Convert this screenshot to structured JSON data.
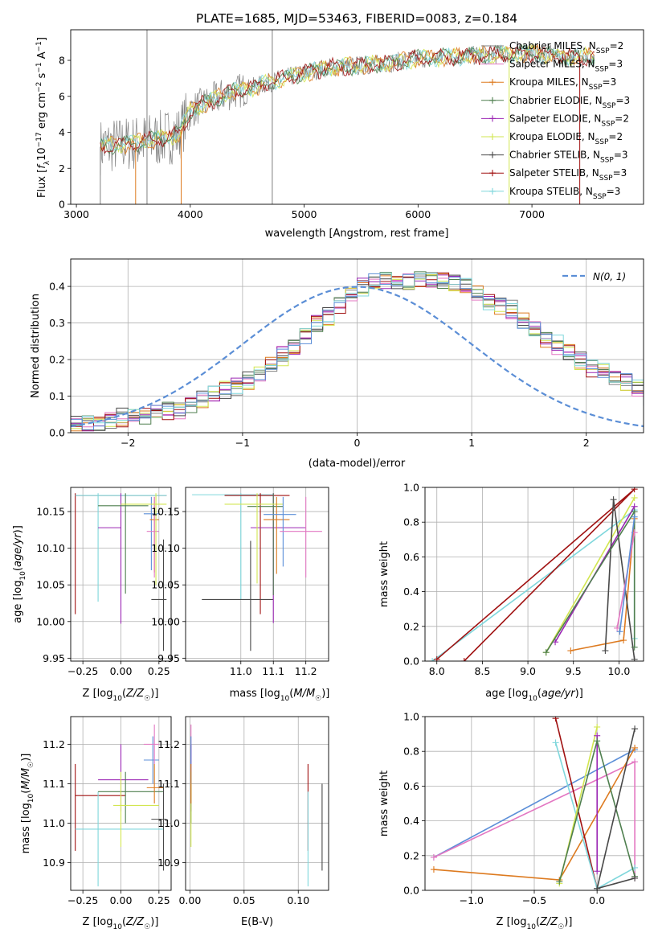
{
  "colors": {
    "Chabrier MILES": "#808080",
    "Salpeter MILES": "#e377c2",
    "Kroupa MILES": "#dd7a1f",
    "Chabrier ELODIE": "#4f7f4f",
    "Salpeter ELODIE": "#9b27b4",
    "Kroupa ELODIE": "#d2e650",
    "Chabrier STELIB": "#484848",
    "Salpeter STELIB": "#a01111",
    "Kroupa STELIB": "#7fd7dc",
    "extra blue": "#5c8fd8"
  },
  "chart_data": [
    {
      "id": "spectrum",
      "type": "line",
      "title": "PLATE=1685, MJD=53463, FIBERID=0083, z=0.184",
      "xlabel": "wavelength [Angstrom, rest frame]",
      "ylabel": "Flux [f_λ 10^-17 erg cm^-2 s^-1 A^-1]",
      "xlim": [
        2950,
        7980
      ],
      "ylim": [
        0,
        9.7
      ],
      "xticks": [
        3000,
        4000,
        5000,
        6000,
        7000
      ],
      "yticks": [
        0,
        2,
        4,
        6,
        8
      ],
      "legend_position": "upper right",
      "legend": [
        {
          "name": "Chabrier MILES",
          "nssp": "2",
          "color": "#808080",
          "marker": "none"
        },
        {
          "name": "Salpeter MILES",
          "nssp": "3",
          "color": "#e377c2",
          "marker": "none"
        },
        {
          "name": "Kroupa MILES",
          "nssp": "3",
          "color": "#dd7a1f",
          "marker": "+"
        },
        {
          "name": "Chabrier ELODIE",
          "nssp": "3",
          "color": "#4f7f4f",
          "marker": "+"
        },
        {
          "name": "Salpeter ELODIE",
          "nssp": "2",
          "color": "#9b27b4",
          "marker": "+"
        },
        {
          "name": "Kroupa ELODIE",
          "nssp": "2",
          "color": "#d2e650",
          "marker": "+"
        },
        {
          "name": "Chabrier STELIB",
          "nssp": "3",
          "color": "#484848",
          "marker": "+"
        },
        {
          "name": "Salpeter STELIB",
          "nssp": "3",
          "color": "#a01111",
          "marker": "+"
        },
        {
          "name": "Kroupa STELIB",
          "nssp": "3",
          "color": "#7fd7dc",
          "marker": "+"
        }
      ],
      "continuum_points": [
        [
          3210,
          3.2
        ],
        [
          3500,
          3.4
        ],
        [
          3700,
          3.6
        ],
        [
          3900,
          3.9
        ],
        [
          4000,
          5.2
        ],
        [
          4300,
          6.1
        ],
        [
          4600,
          6.6
        ],
        [
          5000,
          7.3
        ],
        [
          5200,
          7.6
        ],
        [
          5500,
          7.7
        ],
        [
          5800,
          7.9
        ],
        [
          6000,
          8.1
        ],
        [
          6300,
          8.2
        ],
        [
          6600,
          8.3
        ],
        [
          7000,
          8.4
        ],
        [
          7300,
          8.2
        ],
        [
          7550,
          8.2
        ]
      ]
    },
    {
      "id": "residuals",
      "type": "step",
      "xlabel": "(data-model)/error",
      "ylabel": "Normed distribution",
      "xlim": [
        -2.5,
        2.5
      ],
      "ylim": [
        0,
        0.475
      ],
      "xticks": [
        -2,
        -1,
        0,
        1,
        2
      ],
      "yticks": [
        0.0,
        0.1,
        0.2,
        0.3,
        0.4
      ],
      "legend_position": "upper right",
      "reference_label": "N(0, 1)",
      "reference_color": "#5b8ed6",
      "bin_start": -2.5,
      "bin_width": 0.1,
      "base_values": [
        0.02,
        0.025,
        0.03,
        0.035,
        0.04,
        0.045,
        0.05,
        0.055,
        0.06,
        0.065,
        0.08,
        0.09,
        0.105,
        0.12,
        0.13,
        0.14,
        0.16,
        0.185,
        0.21,
        0.235,
        0.27,
        0.3,
        0.32,
        0.35,
        0.38,
        0.4,
        0.41,
        0.42,
        0.415,
        0.41,
        0.42,
        0.42,
        0.415,
        0.41,
        0.4,
        0.38,
        0.36,
        0.35,
        0.335,
        0.31,
        0.28,
        0.255,
        0.24,
        0.22,
        0.2,
        0.18,
        0.17,
        0.155,
        0.14,
        0.12,
        0.1,
        0.085,
        0.075,
        0.065,
        0.055,
        0.045,
        0.04,
        0.035,
        0.03,
        0.025
      ],
      "series_colors": [
        "#808080",
        "#e377c2",
        "#dd7a1f",
        "#4f7f4f",
        "#9b27b4",
        "#d2e650",
        "#484848",
        "#a01111",
        "#7fd7dc",
        "#5c8fd8"
      ]
    },
    {
      "id": "age-vs-Z",
      "type": "errorbar",
      "xlabel": "Z [log10(Z/Z☉)]",
      "ylabel": "age [log10(age/yr)]",
      "xlim": [
        -0.33,
        0.33
      ],
      "ylim": [
        9.946,
        10.183
      ],
      "xticks": [
        -0.25,
        0.0,
        0.25
      ],
      "xticklabels": [
        "−0.25",
        "0.00",
        "0.25"
      ],
      "yticks": [
        9.95,
        10.0,
        10.05,
        10.1,
        10.15
      ],
      "points": [
        {
          "x": -0.3,
          "y": 10.172,
          "xlo": -0.3,
          "xhi": 0.3,
          "ylo": 10.01,
          "yhi": 10.175,
          "color": "#a01111"
        },
        {
          "x": -0.15,
          "y": 10.172,
          "xlo": -0.3,
          "xhi": 0.3,
          "ylo": 10.027,
          "yhi": 10.175,
          "color": "#7fd7dc"
        },
        {
          "x": 0.0,
          "y": 10.128,
          "xlo": -0.15,
          "xhi": 0.0,
          "ylo": 9.997,
          "yhi": 10.175,
          "color": "#9b27b4"
        },
        {
          "x": 0.03,
          "y": 10.158,
          "xlo": -0.15,
          "xhi": 0.18,
          "ylo": 10.038,
          "yhi": 10.175,
          "color": "#4f7f4f"
        },
        {
          "x": 0.2,
          "y": 10.147,
          "xlo": 0.15,
          "xhi": 0.25,
          "ylo": 10.07,
          "yhi": 10.17,
          "color": "#5c8fd8"
        },
        {
          "x": 0.22,
          "y": 10.139,
          "xlo": 0.19,
          "xhi": 0.25,
          "ylo": 10.067,
          "yhi": 10.17,
          "color": "#dd7a1f"
        },
        {
          "x": 0.22,
          "y": 10.123,
          "xlo": 0.17,
          "xhi": 0.25,
          "ylo": 10.06,
          "yhi": 10.17,
          "color": "#e377c2"
        },
        {
          "x": 0.23,
          "y": 10.16,
          "xlo": 0.0,
          "xhi": 0.3,
          "ylo": 10.05,
          "yhi": 10.175,
          "color": "#d2e650"
        },
        {
          "x": 0.28,
          "y": 10.03,
          "xlo": 0.2,
          "xhi": 0.3,
          "ylo": 9.96,
          "yhi": 10.112,
          "color": "#484848"
        }
      ]
    },
    {
      "id": "age-vs-mass",
      "type": "errorbar",
      "xlabel": "mass [log10(M/M☉)]",
      "ylabel": "",
      "xlim": [
        10.83,
        11.27
      ],
      "ylim": [
        9.946,
        10.183
      ],
      "xticks": [
        11.0,
        11.1,
        11.2
      ],
      "yticks": [
        9.95,
        10.0,
        10.05,
        10.1,
        10.15
      ],
      "points": [
        {
          "x": 11.0,
          "y": 10.173,
          "xlo": 10.85,
          "xhi": 11.1,
          "ylo": 10.03,
          "yhi": 10.175,
          "color": "#7fd7dc"
        },
        {
          "x": 11.06,
          "y": 10.172,
          "xlo": 10.95,
          "xhi": 11.15,
          "ylo": 10.01,
          "yhi": 10.175,
          "color": "#a01111"
        },
        {
          "x": 11.03,
          "y": 10.03,
          "xlo": 10.88,
          "xhi": 11.1,
          "ylo": 9.96,
          "yhi": 10.11,
          "color": "#484848"
        },
        {
          "x": 11.1,
          "y": 10.128,
          "xlo": 11.03,
          "xhi": 11.2,
          "ylo": 9.998,
          "yhi": 10.175,
          "color": "#9b27b4"
        },
        {
          "x": 11.1,
          "y": 10.157,
          "xlo": 11.02,
          "xhi": 11.13,
          "ylo": 10.036,
          "yhi": 10.175,
          "color": "#4f7f4f"
        },
        {
          "x": 11.05,
          "y": 10.16,
          "xlo": 10.95,
          "xhi": 11.13,
          "ylo": 10.052,
          "yhi": 10.175,
          "color": "#d2e650"
        },
        {
          "x": 11.11,
          "y": 10.139,
          "xlo": 11.07,
          "xhi": 11.15,
          "ylo": 10.065,
          "yhi": 10.17,
          "color": "#dd7a1f"
        },
        {
          "x": 11.13,
          "y": 10.146,
          "xlo": 11.07,
          "xhi": 11.17,
          "ylo": 10.075,
          "yhi": 10.17,
          "color": "#5c8fd8"
        },
        {
          "x": 11.2,
          "y": 10.123,
          "xlo": 11.12,
          "xhi": 11.25,
          "ylo": 10.06,
          "yhi": 10.17,
          "color": "#e377c2"
        }
      ]
    },
    {
      "id": "mass-weight-vs-age",
      "type": "line",
      "xlabel": "age [log10(age/yr)]",
      "ylabel": "mass weight",
      "xlim": [
        7.87,
        10.27
      ],
      "ylim": [
        0.0,
        1.0
      ],
      "xticks": [
        8.0,
        8.5,
        9.0,
        9.5,
        10.0
      ],
      "yticks": [
        0.0,
        0.2,
        0.4,
        0.6,
        0.8,
        1.0
      ],
      "series": [
        {
          "name": "Kroupa STELIB",
          "color": "#7fd7dc",
          "points": [
            [
              7.95,
              0.0
            ],
            [
              10.17,
              0.87
            ],
            [
              10.17,
              0.13
            ]
          ]
        },
        {
          "name": "Salpeter STELIB",
          "color": "#a01111",
          "points": [
            [
              8.3,
              0.0
            ],
            [
              10.17,
              0.99
            ],
            [
              8.0,
              0.01
            ]
          ]
        },
        {
          "name": "Kroupa MILES",
          "color": "#dd7a1f",
          "points": [
            [
              9.47,
              0.06
            ],
            [
              10.05,
              0.12
            ],
            [
              10.17,
              0.82
            ]
          ]
        },
        {
          "name": "Kroupa ELODIE",
          "color": "#d2e650",
          "points": [
            [
              9.2,
              0.05
            ],
            [
              10.17,
              0.94
            ]
          ]
        },
        {
          "name": "Salpeter ELODIE",
          "color": "#9b27b4",
          "points": [
            [
              9.3,
              0.11
            ],
            [
              10.17,
              0.89
            ]
          ]
        },
        {
          "name": "Chabrier STELIB",
          "color": "#484848",
          "points": [
            [
              9.85,
              0.06
            ],
            [
              9.94,
              0.93
            ],
            [
              10.17,
              0.01
            ]
          ]
        },
        {
          "name": "Chabrier ELODIE",
          "color": "#4f7f4f",
          "points": [
            [
              9.2,
              0.05
            ],
            [
              10.17,
              0.86
            ],
            [
              10.17,
              0.08
            ]
          ]
        },
        {
          "name": "Salpeter MILES",
          "color": "#e377c2",
          "points": [
            [
              9.98,
              0.19
            ],
            [
              10.17,
              0.74
            ]
          ]
        },
        {
          "name": "extra",
          "color": "#5c8fd8",
          "points": [
            [
              10.01,
              0.17
            ],
            [
              10.17,
              0.83
            ]
          ]
        }
      ]
    },
    {
      "id": "mass-vs-Z",
      "type": "errorbar",
      "xlabel": "Z [log10(Z/Z☉)]",
      "ylabel": "mass [log10(M/M☉)]",
      "xlim": [
        -0.33,
        0.33
      ],
      "ylim": [
        10.83,
        11.27
      ],
      "xticks": [
        -0.25,
        0.0,
        0.25
      ],
      "xticklabels": [
        "−0.25",
        "0.00",
        "0.25"
      ],
      "yticks": [
        10.9,
        11.0,
        11.1,
        11.2
      ],
      "points": [
        {
          "x": -0.3,
          "y": 11.07,
          "xlo": -0.3,
          "xhi": 0.03,
          "ylo": 10.93,
          "yhi": 11.15,
          "color": "#a01111"
        },
        {
          "x": -0.15,
          "y": 10.985,
          "xlo": -0.3,
          "xhi": 0.28,
          "ylo": 10.84,
          "yhi": 11.08,
          "color": "#7fd7dc"
        },
        {
          "x": 0.0,
          "y": 11.11,
          "xlo": -0.15,
          "xhi": 0.18,
          "ylo": 11.03,
          "yhi": 11.2,
          "color": "#9b27b4"
        },
        {
          "x": 0.03,
          "y": 11.08,
          "xlo": -0.15,
          "xhi": 0.28,
          "ylo": 11.0,
          "yhi": 11.13,
          "color": "#4f7f4f"
        },
        {
          "x": 0.0,
          "y": 11.045,
          "xlo": -0.05,
          "xhi": 0.25,
          "ylo": 10.94,
          "yhi": 11.13,
          "color": "#d2e650"
        },
        {
          "x": 0.22,
          "y": 11.09,
          "xlo": 0.17,
          "xhi": 0.28,
          "ylo": 11.05,
          "yhi": 11.15,
          "color": "#dd7a1f"
        },
        {
          "x": 0.21,
          "y": 11.16,
          "xlo": 0.15,
          "xhi": 0.25,
          "ylo": 11.1,
          "yhi": 11.22,
          "color": "#5c8fd8"
        },
        {
          "x": 0.22,
          "y": 11.2,
          "xlo": 0.15,
          "xhi": 0.25,
          "ylo": 11.15,
          "yhi": 11.25,
          "color": "#e377c2"
        },
        {
          "x": 0.28,
          "y": 11.01,
          "xlo": 0.2,
          "xhi": 0.3,
          "ylo": 10.88,
          "yhi": 11.1,
          "color": "#484848"
        }
      ]
    },
    {
      "id": "mass-vs-EBV",
      "type": "errorbar",
      "xlabel": "E(B-V)",
      "ylabel": "",
      "xlim": [
        -0.004,
        0.128
      ],
      "ylim": [
        10.83,
        11.27
      ],
      "xticks": [
        0.0,
        0.05,
        0.1
      ],
      "xticklabels": [
        "0.00",
        "0.05",
        "0.10"
      ],
      "yticks": [
        10.9,
        11.0,
        11.1,
        11.2
      ],
      "points": [
        {
          "x": 0.001,
          "y": 11.2,
          "xlo": 0.001,
          "xhi": 0.001,
          "ylo": 11.15,
          "yhi": 11.25,
          "color": "#e377c2"
        },
        {
          "x": 0.001,
          "y": 11.11,
          "xlo": 0.001,
          "xhi": 0.001,
          "ylo": 11.03,
          "yhi": 11.2,
          "color": "#9b27b4"
        },
        {
          "x": 0.001,
          "y": 11.08,
          "xlo": 0.001,
          "xhi": 0.001,
          "ylo": 11.0,
          "yhi": 11.13,
          "color": "#4f7f4f"
        },
        {
          "x": 0.001,
          "y": 11.045,
          "xlo": 0.001,
          "xhi": 0.001,
          "ylo": 10.94,
          "yhi": 11.13,
          "color": "#d2e650"
        },
        {
          "x": 0.001,
          "y": 11.16,
          "xlo": 0.001,
          "xhi": 0.001,
          "ylo": 11.1,
          "yhi": 11.22,
          "color": "#5c8fd8"
        },
        {
          "x": 0.001,
          "y": 11.09,
          "xlo": 0.001,
          "xhi": 0.001,
          "ylo": 11.05,
          "yhi": 11.15,
          "color": "#dd7a1f"
        },
        {
          "x": 0.109,
          "y": 11.07,
          "xlo": 0.109,
          "xhi": 0.109,
          "ylo": 10.93,
          "yhi": 11.15,
          "color": "#a01111"
        },
        {
          "x": 0.109,
          "y": 10.985,
          "xlo": 0.109,
          "xhi": 0.109,
          "ylo": 10.84,
          "yhi": 11.08,
          "color": "#7fd7dc"
        },
        {
          "x": 0.122,
          "y": 11.01,
          "xlo": 0.122,
          "xhi": 0.122,
          "ylo": 10.88,
          "yhi": 11.1,
          "color": "#484848"
        }
      ]
    },
    {
      "id": "mass-weight-vs-Z",
      "type": "line",
      "xlabel": "Z [log10(Z/Z☉)]",
      "ylabel": "mass weight",
      "xlim": [
        -1.37,
        0.37
      ],
      "ylim": [
        0.0,
        1.0
      ],
      "xticks": [
        -1.0,
        -0.5,
        0.0
      ],
      "xticklabels": [
        "−1.0",
        "−0.5",
        "0.0"
      ],
      "yticks": [
        0.0,
        0.2,
        0.4,
        0.6,
        0.8,
        1.0
      ],
      "series": [
        {
          "name": "extra",
          "color": "#5c8fd8",
          "points": [
            [
              -1.3,
              0.19
            ],
            [
              0.3,
              0.81
            ]
          ]
        },
        {
          "name": "Salpeter MILES",
          "color": "#e377c2",
          "points": [
            [
              -1.3,
              0.19
            ],
            [
              0.3,
              0.74
            ],
            [
              0.3,
              0.07
            ]
          ]
        },
        {
          "name": "Kroupa MILES",
          "color": "#dd7a1f",
          "points": [
            [
              -1.3,
              0.12
            ],
            [
              -0.3,
              0.06
            ],
            [
              0.3,
              0.82
            ]
          ]
        },
        {
          "name": "Salpeter STELIB",
          "color": "#a01111",
          "points": [
            [
              -0.33,
              0.99
            ],
            [
              0.0,
              0.01
            ]
          ]
        },
        {
          "name": "Kroupa STELIB",
          "color": "#7fd7dc",
          "points": [
            [
              -0.33,
              0.85
            ],
            [
              0.0,
              0.01
            ],
            [
              0.3,
              0.13
            ]
          ]
        },
        {
          "name": "Kroupa ELODIE",
          "color": "#d2e650",
          "points": [
            [
              -0.3,
              0.04
            ],
            [
              0.0,
              0.94
            ]
          ]
        },
        {
          "name": "Salpeter ELODIE",
          "color": "#9b27b4",
          "points": [
            [
              0.0,
              0.89
            ],
            [
              0.0,
              0.11
            ]
          ]
        },
        {
          "name": "Chabrier ELODIE",
          "color": "#4f7f4f",
          "points": [
            [
              -0.3,
              0.05
            ],
            [
              0.0,
              0.86
            ],
            [
              0.3,
              0.08
            ]
          ]
        },
        {
          "name": "Chabrier STELIB",
          "color": "#484848",
          "points": [
            [
              0.3,
              0.93
            ],
            [
              0.0,
              0.01
            ],
            [
              0.3,
              0.07
            ]
          ]
        }
      ]
    }
  ]
}
